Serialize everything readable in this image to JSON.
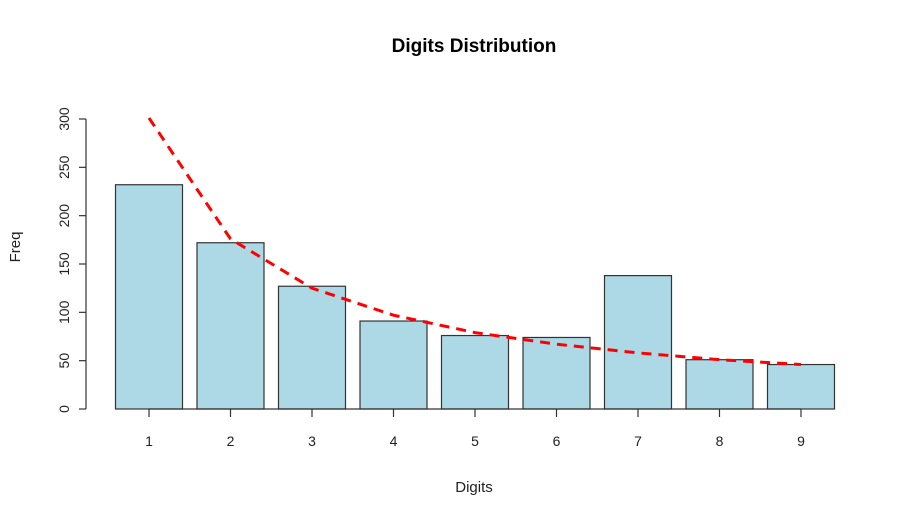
{
  "chart_data": {
    "type": "bar",
    "title": "Digits Distribution",
    "xlabel": "Digits",
    "ylabel": "Freq",
    "categories": [
      "1",
      "2",
      "3",
      "4",
      "5",
      "6",
      "7",
      "8",
      "9"
    ],
    "series": [
      {
        "values": [
          232,
          172,
          127,
          91,
          76,
          74,
          138,
          51,
          46
        ],
        "color": "#add8e6",
        "style": "bar"
      },
      {
        "values": [
          301,
          176,
          125,
          97,
          79,
          67,
          58,
          51,
          46
        ],
        "color": "#ff0000",
        "style": "dashed-line"
      }
    ],
    "yticks": [
      0,
      50,
      100,
      150,
      200,
      250,
      300
    ],
    "ylim": [
      0,
      300
    ],
    "grid": false
  }
}
